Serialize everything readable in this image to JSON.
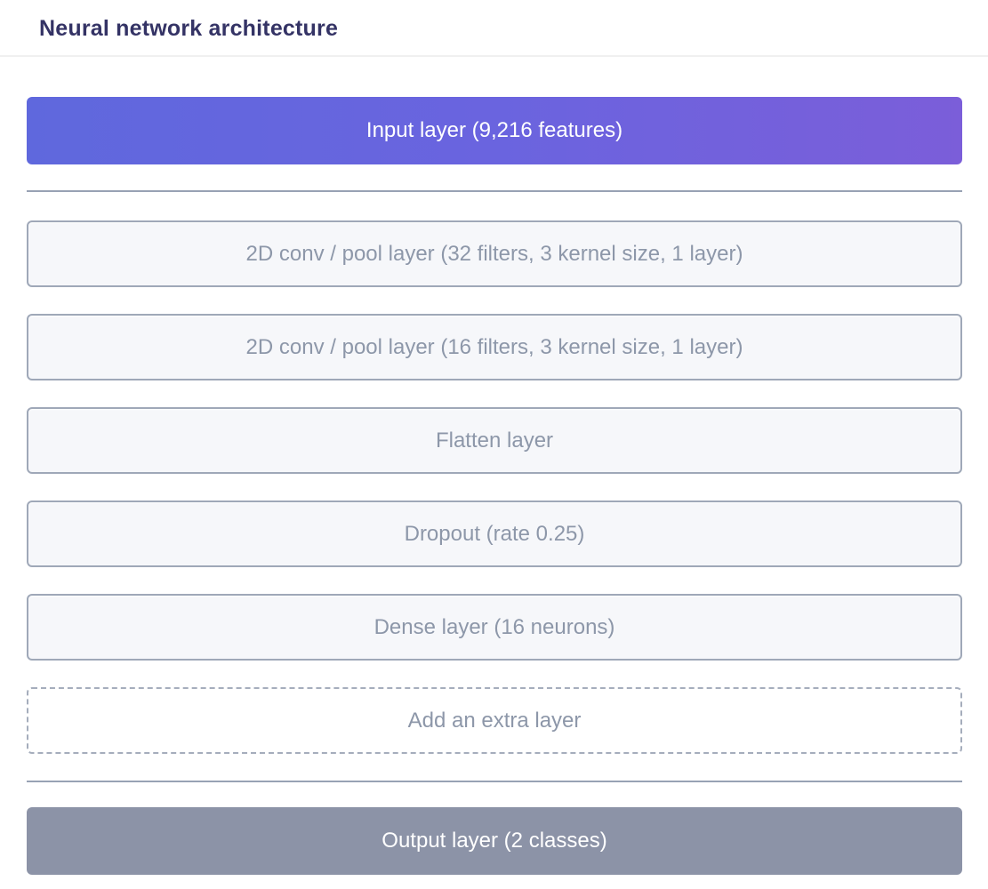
{
  "page": {
    "title": "Neural network architecture"
  },
  "colors": {
    "title_text": "#343365",
    "input_gradient_start": "#5f68dd",
    "input_gradient_end": "#7b5ed9",
    "layer_background": "#f6f7fa",
    "layer_border": "#9fa8b8",
    "layer_text": "#8d97a9",
    "divider": "#98a2b4",
    "top_divider": "#f0f0f0",
    "output_background": "#8c93a7",
    "button_text": "#ffffff"
  },
  "architecture": {
    "input_layer": {
      "label": "Input layer (9,216 features)"
    },
    "layers": [
      {
        "label": "2D conv / pool layer (32 filters, 3 kernel size, 1 layer)"
      },
      {
        "label": "2D conv / pool layer (16 filters, 3 kernel size, 1 layer)"
      },
      {
        "label": "Flatten layer"
      },
      {
        "label": "Dropout (rate 0.25)"
      },
      {
        "label": "Dense layer (16 neurons)"
      }
    ],
    "add_layer": {
      "label": "Add an extra layer"
    },
    "output_layer": {
      "label": "Output layer (2 classes)"
    }
  }
}
